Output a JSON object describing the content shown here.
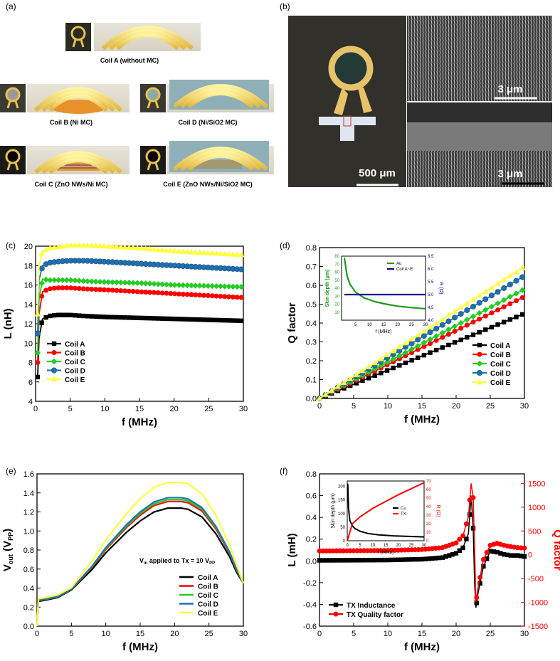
{
  "panel_labels": {
    "a": "(a)",
    "b": "(b)",
    "c": "(c)",
    "d": "(d)",
    "e": "(e)",
    "f": "(f)"
  },
  "panel_a": {
    "captions": [
      "Coil A (without MC)",
      "Coil B (Ni MC)",
      "Coil D (Ni/SiO2 MC)",
      "Coil C (ZnO NWs/Ni MC)",
      "Coil E (ZnO NWs/Ni/SiO2 MC)"
    ]
  },
  "panel_b": {
    "scalebar_main": "500 μm",
    "scalebar_top": "3 μm",
    "scalebar_bottom": "3 μm"
  },
  "chart_data": [
    {
      "id": "c",
      "type": "line",
      "xlabel": "f (MHz)",
      "ylabel": "L (nH)",
      "xlim": [
        0,
        30
      ],
      "ylim": [
        4,
        20
      ],
      "xticks": [
        "0",
        "5",
        "10",
        "15",
        "20",
        "25",
        "30"
      ],
      "yticks": [
        "4",
        "6",
        "8",
        "10",
        "12",
        "14",
        "16",
        "18",
        "20"
      ],
      "x": [
        0.3,
        0.5,
        1,
        2,
        3,
        5,
        7,
        10,
        15,
        20,
        25,
        30
      ],
      "series": [
        {
          "name": "Coil A",
          "color": "#000000",
          "values": [
            6.5,
            10.5,
            12.5,
            12.8,
            12.9,
            12.9,
            12.8,
            12.7,
            12.6,
            12.5,
            12.4,
            12.3
          ]
        },
        {
          "name": "Coil B",
          "color": "#ff0000",
          "values": [
            8.0,
            13.0,
            15.3,
            15.6,
            15.7,
            15.7,
            15.6,
            15.5,
            15.3,
            15.1,
            14.9,
            14.7
          ]
        },
        {
          "name": "Coil C",
          "color": "#22cc22",
          "values": [
            9.0,
            14.5,
            16.6,
            16.5,
            16.5,
            16.5,
            16.4,
            16.3,
            16.2,
            16.0,
            15.9,
            15.8
          ]
        },
        {
          "name": "Coil D",
          "color": "#2070b0",
          "values": [
            11.0,
            16.5,
            18.0,
            18.3,
            18.4,
            18.5,
            18.5,
            18.4,
            18.2,
            18.0,
            17.8,
            17.6
          ]
        },
        {
          "name": "Coil E",
          "color": "#ffff40",
          "values": [
            13.0,
            18.0,
            19.5,
            19.8,
            19.9,
            20.1,
            20.1,
            20.0,
            19.8,
            19.5,
            19.3,
            19.1
          ]
        }
      ]
    },
    {
      "id": "d",
      "type": "line",
      "xlabel": "f (MHz)",
      "ylabel": "Q factor",
      "xlim": [
        0,
        30
      ],
      "ylim": [
        0,
        0.8
      ],
      "xticks": [
        "0",
        "5",
        "10",
        "15",
        "20",
        "25",
        "30"
      ],
      "yticks": [
        "0.0",
        "0.1",
        "0.2",
        "0.3",
        "0.4",
        "0.5",
        "0.6",
        "0.7",
        "0.8"
      ],
      "x": [
        0,
        30
      ],
      "series": [
        {
          "name": "Coil A",
          "color": "#000000",
          "values": [
            0,
            0.45
          ]
        },
        {
          "name": "Coil B",
          "color": "#ff0000",
          "values": [
            0,
            0.54
          ]
        },
        {
          "name": "Coil C",
          "color": "#22cc22",
          "values": [
            0,
            0.58
          ]
        },
        {
          "name": "Coil D",
          "color": "#2070b0",
          "values": [
            0,
            0.65
          ]
        },
        {
          "name": "Coil E",
          "color": "#ffff40",
          "values": [
            0,
            0.7
          ]
        }
      ],
      "inset": {
        "xlabel": "f (MHz)",
        "ylabel": "Skin depth (μm)",
        "y2label": "R (Ω)",
        "xlim": [
          0,
          30
        ],
        "ylim": [
          0,
          80
        ],
        "y2lim": [
          4.0,
          6.5
        ],
        "xticks": [
          "5",
          "10",
          "15",
          "20",
          "25",
          "30"
        ],
        "yticks": [
          "10",
          "20",
          "30",
          "40",
          "50",
          "60",
          "70",
          "80"
        ],
        "y2ticks": [
          "4.0",
          "4.5",
          "5.0",
          "5.5",
          "6.0",
          "6.5"
        ],
        "skin_x": [
          1,
          2,
          3,
          5,
          8,
          12,
          16,
          20,
          25,
          30
        ],
        "skin_y": [
          78,
          55,
          45,
          35,
          28,
          23,
          20,
          17.5,
          15.7,
          14.3
        ],
        "r_value": 5.0,
        "legend": [
          "Au",
          "Coil A~E"
        ],
        "colors": {
          "skin": "#1a9a1a",
          "r": "#00008b"
        }
      }
    },
    {
      "id": "e",
      "type": "line",
      "xlabel": "f (MHz)",
      "ylabel": "V",
      "ylabel_sub": "out",
      "ylabel_tail": " (V",
      "ylabel_sub2": "PP",
      "ylabel_end": ")",
      "xlim": [
        0,
        30
      ],
      "ylim": [
        0,
        1.6
      ],
      "xticks": [
        "0",
        "5",
        "10",
        "15",
        "20",
        "25",
        "30"
      ],
      "yticks": [
        "0.0",
        "0.2",
        "0.4",
        "0.6",
        "0.8",
        "1.0",
        "1.2",
        "1.4",
        "1.6"
      ],
      "annotation": {
        "pre": "V",
        "sub": "in",
        "mid": " applied to Tx = 10 V",
        "sub2": "PP"
      },
      "x": [
        0,
        0.2,
        1,
        3,
        5,
        8,
        10,
        13,
        15,
        17,
        19,
        21,
        22,
        24,
        26,
        28,
        29,
        30
      ],
      "series": [
        {
          "name": "Coil A",
          "color": "#000000",
          "peak": 1.24
        },
        {
          "name": "Coil B",
          "color": "#ff0000",
          "peak": 1.31
        },
        {
          "name": "Coil C",
          "color": "#22cc22",
          "peak": 1.33
        },
        {
          "name": "Coil D",
          "color": "#2070b0",
          "peak": 1.35
        },
        {
          "name": "Coil E",
          "color": "#ffff40",
          "peak": 1.51
        }
      ],
      "shape": [
        0.0,
        0.26,
        0.27,
        0.3,
        0.36,
        0.52,
        0.65,
        0.81,
        0.9,
        0.97,
        1.0,
        1.0,
        0.99,
        0.93,
        0.8,
        0.62,
        0.5,
        0.36
      ]
    },
    {
      "id": "f",
      "type": "line",
      "xlabel": "f (MHz)",
      "ylabel": "L (mH)",
      "y2label": "Q factor",
      "xlim": [
        0,
        30
      ],
      "ylim": [
        -0.6,
        0.8
      ],
      "y2lim": [
        -1500,
        1700
      ],
      "xticks": [
        "0",
        "5",
        "10",
        "15",
        "20",
        "25",
        "30"
      ],
      "yticks": [
        "-0.6",
        "-0.4",
        "-0.2",
        "0.0",
        "0.2",
        "0.4",
        "0.6",
        "0.8"
      ],
      "y2ticks": [
        "-1500",
        "-1000",
        "-500",
        "0",
        "500",
        "1000",
        "1500"
      ],
      "x": [
        0,
        5,
        10,
        15,
        18,
        20,
        21,
        21.8,
        22.2,
        22.5,
        22.7,
        22.9,
        23.2,
        24,
        25,
        26,
        27,
        28,
        29,
        30
      ],
      "series": [
        {
          "name": "TX Inductance",
          "color": "#000000",
          "axis": "left",
          "values": [
            0.005,
            0.006,
            0.008,
            0.015,
            0.03,
            0.07,
            0.12,
            0.25,
            0.6,
            0.3,
            -0.2,
            -0.43,
            -0.3,
            -0.05,
            0.09,
            0.08,
            0.06,
            0.05,
            0.05,
            0.04
          ]
        },
        {
          "name": "TX Quality factor",
          "color": "#ff0000",
          "axis": "right",
          "values": [
            80,
            85,
            90,
            110,
            150,
            250,
            400,
            800,
            1500,
            1200,
            200,
            -1000,
            -700,
            -100,
            200,
            240,
            200,
            170,
            150,
            140
          ]
        }
      ],
      "inset": {
        "xlabel": "f (MHz)",
        "ylabel": "Skin depth (μm)",
        "y2label": "R (Ω)",
        "xlim": [
          0,
          30
        ],
        "ylim": [
          0,
          220
        ],
        "y2lim": [
          0,
          70
        ],
        "xticks": [
          "0",
          "5",
          "10",
          "15",
          "20",
          "25",
          "30"
        ],
        "yticks": [
          "0",
          "50",
          "100",
          "150",
          "200"
        ],
        "y2ticks": [
          "0",
          "10",
          "20",
          "30",
          "40",
          "50",
          "60",
          "70"
        ],
        "skin_x": [
          0.2,
          0.5,
          1,
          2,
          3,
          5,
          8,
          12,
          18,
          24,
          30
        ],
        "skin_y": [
          210,
          120,
          75,
          55,
          45,
          35,
          27,
          22,
          18,
          16,
          14
        ],
        "r_x": [
          0,
          2,
          5,
          10,
          15,
          20,
          25,
          30
        ],
        "r_y": [
          0,
          20,
          28,
          38,
          46,
          54,
          61,
          68
        ],
        "legend": [
          "Cu",
          "TX"
        ],
        "colors": {
          "skin": "#000000",
          "r": "#ff0000"
        }
      }
    }
  ]
}
